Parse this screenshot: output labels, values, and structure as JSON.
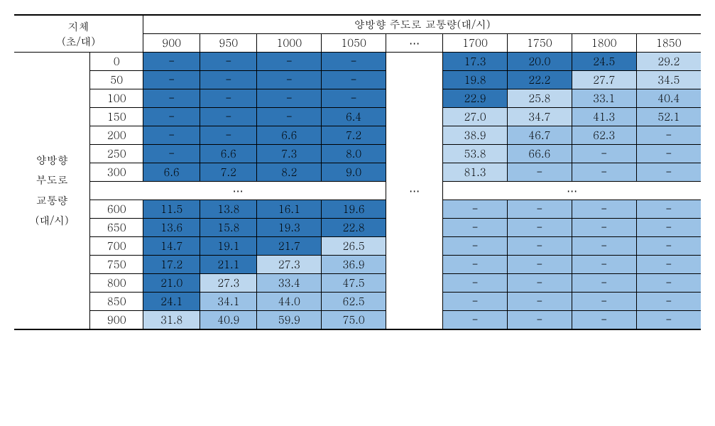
{
  "header": {
    "corner_line1": "지체",
    "corner_line2": "(초/대)",
    "main_header": "양방향 주도로 교통량(대/시)",
    "cols_left": [
      "900",
      "950",
      "1000",
      "1050"
    ],
    "ellipsis": "⋯",
    "cols_right": [
      "1700",
      "1750",
      "1800",
      "1850"
    ]
  },
  "side": {
    "label_line1": "양방향",
    "label_line2": "부도로",
    "label_line3": "교통량",
    "label_line4": "(대/시)"
  },
  "row_labels_top": [
    "0",
    "50",
    "100",
    "150",
    "200",
    "250",
    "300"
  ],
  "row_labels_bot": [
    "600",
    "650",
    "700",
    "750",
    "800",
    "850",
    "900"
  ],
  "mid_ellipsis": "⋯",
  "rows_top": [
    {
      "left": [
        {
          "v": "-",
          "c": "d"
        },
        {
          "v": "-",
          "c": "d"
        },
        {
          "v": "-",
          "c": "d"
        },
        {
          "v": "-",
          "c": "d"
        }
      ],
      "right": [
        {
          "v": "17.3",
          "c": "d"
        },
        {
          "v": "20.0",
          "c": "d"
        },
        {
          "v": "24.5",
          "c": "d"
        },
        {
          "v": "29.2",
          "c": "l"
        }
      ]
    },
    {
      "left": [
        {
          "v": "-",
          "c": "d"
        },
        {
          "v": "-",
          "c": "d"
        },
        {
          "v": "-",
          "c": "d"
        },
        {
          "v": "-",
          "c": "d"
        }
      ],
      "right": [
        {
          "v": "19.8",
          "c": "d"
        },
        {
          "v": "22.2",
          "c": "d"
        },
        {
          "v": "27.7",
          "c": "l"
        },
        {
          "v": "34.5",
          "c": "l"
        }
      ]
    },
    {
      "left": [
        {
          "v": "-",
          "c": "d"
        },
        {
          "v": "-",
          "c": "d"
        },
        {
          "v": "-",
          "c": "d"
        },
        {
          "v": "-",
          "c": "d"
        }
      ],
      "right": [
        {
          "v": "22.9",
          "c": "d"
        },
        {
          "v": "25.8",
          "c": "l"
        },
        {
          "v": "33.1",
          "c": "m"
        },
        {
          "v": "40.4",
          "c": "m"
        }
      ]
    },
    {
      "left": [
        {
          "v": "-",
          "c": "d"
        },
        {
          "v": "-",
          "c": "d"
        },
        {
          "v": "-",
          "c": "d"
        },
        {
          "v": "6.4",
          "c": "d"
        }
      ],
      "right": [
        {
          "v": "27.0",
          "c": "l"
        },
        {
          "v": "34.7",
          "c": "l"
        },
        {
          "v": "41.3",
          "c": "m"
        },
        {
          "v": "52.1",
          "c": "m"
        }
      ]
    },
    {
      "left": [
        {
          "v": "-",
          "c": "d"
        },
        {
          "v": "-",
          "c": "d"
        },
        {
          "v": "6.6",
          "c": "d"
        },
        {
          "v": "7.2",
          "c": "d"
        }
      ],
      "right": [
        {
          "v": "38.9",
          "c": "l"
        },
        {
          "v": "46.7",
          "c": "m"
        },
        {
          "v": "62.3",
          "c": "m"
        },
        {
          "v": "-",
          "c": "m"
        }
      ]
    },
    {
      "left": [
        {
          "v": "-",
          "c": "d"
        },
        {
          "v": "6.6",
          "c": "d"
        },
        {
          "v": "7.3",
          "c": "d"
        },
        {
          "v": "8.0",
          "c": "d"
        }
      ],
      "right": [
        {
          "v": "53.8",
          "c": "l"
        },
        {
          "v": "66.6",
          "c": "m"
        },
        {
          "v": "-",
          "c": "m"
        },
        {
          "v": "-",
          "c": "m"
        }
      ]
    },
    {
      "left": [
        {
          "v": "6.6",
          "c": "d"
        },
        {
          "v": "7.2",
          "c": "d"
        },
        {
          "v": "8.2",
          "c": "d"
        },
        {
          "v": "9.0",
          "c": "d"
        }
      ],
      "right": [
        {
          "v": "81.3",
          "c": "l"
        },
        {
          "v": "-",
          "c": "m"
        },
        {
          "v": "-",
          "c": "m"
        },
        {
          "v": "-",
          "c": "m"
        }
      ]
    }
  ],
  "rows_bot": [
    {
      "left": [
        {
          "v": "11.5",
          "c": "d"
        },
        {
          "v": "13.8",
          "c": "d"
        },
        {
          "v": "16.1",
          "c": "d"
        },
        {
          "v": "19.6",
          "c": "d"
        }
      ],
      "right": [
        {
          "v": "-",
          "c": "m"
        },
        {
          "v": "-",
          "c": "m"
        },
        {
          "v": "-",
          "c": "m"
        },
        {
          "v": "-",
          "c": "m"
        }
      ]
    },
    {
      "left": [
        {
          "v": "13.6",
          "c": "d"
        },
        {
          "v": "15.8",
          "c": "d"
        },
        {
          "v": "19.3",
          "c": "d"
        },
        {
          "v": "22.8",
          "c": "d"
        }
      ],
      "right": [
        {
          "v": "-",
          "c": "m"
        },
        {
          "v": "-",
          "c": "m"
        },
        {
          "v": "-",
          "c": "m"
        },
        {
          "v": "-",
          "c": "m"
        }
      ]
    },
    {
      "left": [
        {
          "v": "14.7",
          "c": "d"
        },
        {
          "v": "19.1",
          "c": "d"
        },
        {
          "v": "21.7",
          "c": "d"
        },
        {
          "v": "26.5",
          "c": "l"
        }
      ],
      "right": [
        {
          "v": "-",
          "c": "m"
        },
        {
          "v": "-",
          "c": "m"
        },
        {
          "v": "-",
          "c": "m"
        },
        {
          "v": "-",
          "c": "m"
        }
      ]
    },
    {
      "left": [
        {
          "v": "17.2",
          "c": "d"
        },
        {
          "v": "21.1",
          "c": "d"
        },
        {
          "v": "27.3",
          "c": "l"
        },
        {
          "v": "36.9",
          "c": "m"
        }
      ],
      "right": [
        {
          "v": "-",
          "c": "m"
        },
        {
          "v": "-",
          "c": "m"
        },
        {
          "v": "-",
          "c": "m"
        },
        {
          "v": "-",
          "c": "m"
        }
      ]
    },
    {
      "left": [
        {
          "v": "21.0",
          "c": "d"
        },
        {
          "v": "27.3",
          "c": "l"
        },
        {
          "v": "33.4",
          "c": "m"
        },
        {
          "v": "47.5",
          "c": "m"
        }
      ],
      "right": [
        {
          "v": "-",
          "c": "m"
        },
        {
          "v": "-",
          "c": "m"
        },
        {
          "v": "-",
          "c": "m"
        },
        {
          "v": "-",
          "c": "m"
        }
      ]
    },
    {
      "left": [
        {
          "v": "24.1",
          "c": "d"
        },
        {
          "v": "34.1",
          "c": "m"
        },
        {
          "v": "44.0",
          "c": "m"
        },
        {
          "v": "62.5",
          "c": "m"
        }
      ],
      "right": [
        {
          "v": "-",
          "c": "m"
        },
        {
          "v": "-",
          "c": "m"
        },
        {
          "v": "-",
          "c": "m"
        },
        {
          "v": "-",
          "c": "m"
        }
      ]
    },
    {
      "left": [
        {
          "v": "31.8",
          "c": "l"
        },
        {
          "v": "40.9",
          "c": "m"
        },
        {
          "v": "59.9",
          "c": "m"
        },
        {
          "v": "75.0",
          "c": "m"
        }
      ],
      "right": [
        {
          "v": "-",
          "c": "m"
        },
        {
          "v": "-",
          "c": "m"
        },
        {
          "v": "-",
          "c": "m"
        },
        {
          "v": "-",
          "c": "m"
        }
      ]
    }
  ],
  "colors": {
    "d": "#2f75b5",
    "l": "#bdd7ee",
    "m": "#9bc2e6"
  }
}
